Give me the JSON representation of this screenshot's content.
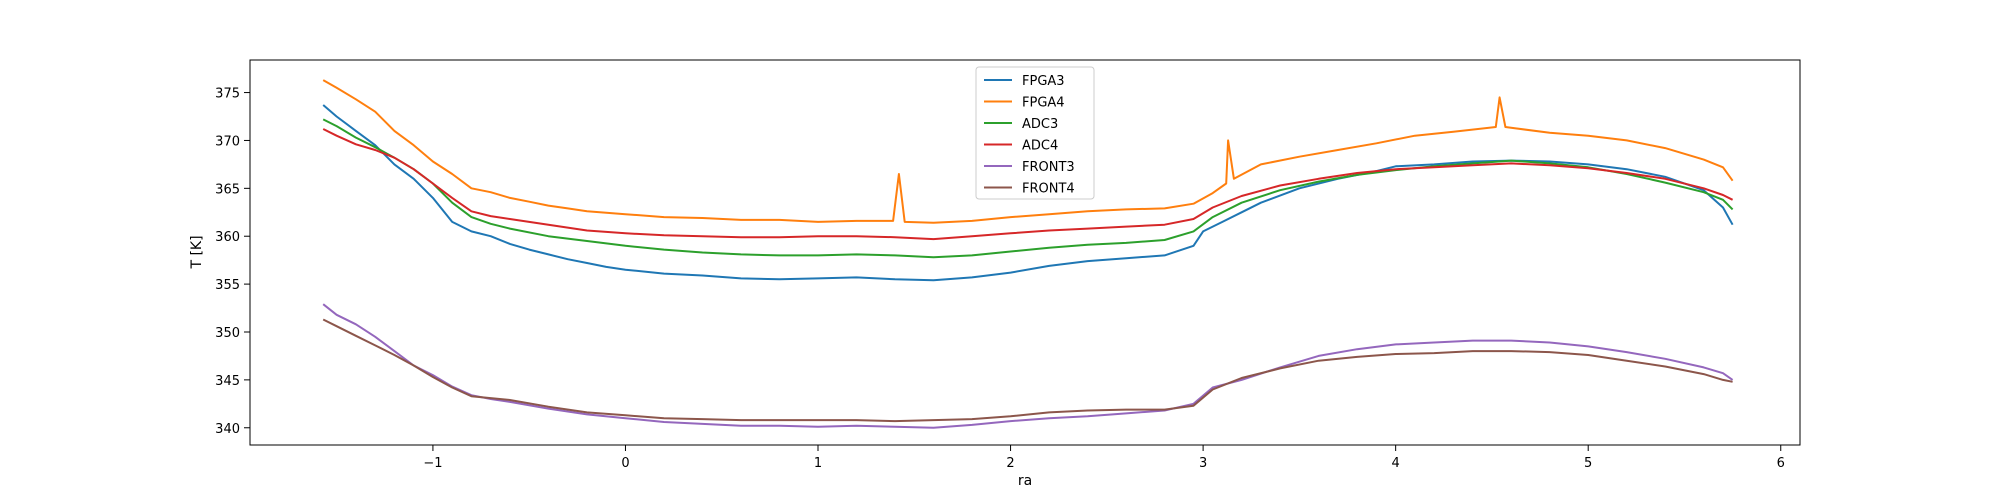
{
  "chart_data": {
    "type": "line",
    "xlabel": "ra",
    "ylabel": "T [K]",
    "xlim": [
      -1.95,
      6.1
    ],
    "ylim": [
      338.2,
      378.4
    ],
    "xticks": [
      -1,
      0,
      1,
      2,
      3,
      4,
      5,
      6
    ],
    "yticks": [
      340,
      345,
      350,
      355,
      360,
      365,
      370,
      375
    ],
    "grid": false,
    "legend_position": "top-center",
    "series": [
      {
        "name": "FPGA3",
        "color": "#1f77b4",
        "x": [
          -1.57,
          -1.5,
          -1.4,
          -1.3,
          -1.2,
          -1.1,
          -1.0,
          -0.9,
          -0.8,
          -0.7,
          -0.6,
          -0.5,
          -0.4,
          -0.3,
          -0.2,
          -0.1,
          0.0,
          0.2,
          0.4,
          0.6,
          0.8,
          1.0,
          1.2,
          1.4,
          1.6,
          1.8,
          2.0,
          2.2,
          2.4,
          2.6,
          2.8,
          2.95,
          3.0,
          3.1,
          3.2,
          3.3,
          3.5,
          3.7,
          3.9,
          4.0,
          4.2,
          4.4,
          4.6,
          4.8,
          5.0,
          5.2,
          5.4,
          5.6,
          5.7,
          5.75
        ],
        "y": [
          373.7,
          372.5,
          371.0,
          369.5,
          367.5,
          366.0,
          364.0,
          361.5,
          360.5,
          360.0,
          359.2,
          358.6,
          358.1,
          357.6,
          357.2,
          356.8,
          356.5,
          356.1,
          355.9,
          355.6,
          355.5,
          355.6,
          355.7,
          355.5,
          355.4,
          355.7,
          356.2,
          356.9,
          357.4,
          357.7,
          358.0,
          359.0,
          360.5,
          361.5,
          362.5,
          363.5,
          365.0,
          366.0,
          366.8,
          367.3,
          367.5,
          367.8,
          367.9,
          367.8,
          367.5,
          367.0,
          366.2,
          364.8,
          363.0,
          361.2
        ]
      },
      {
        "name": "FPGA4",
        "color": "#ff7f0e",
        "x": [
          -1.57,
          -1.5,
          -1.4,
          -1.3,
          -1.2,
          -1.1,
          -1.0,
          -0.9,
          -0.8,
          -0.7,
          -0.6,
          -0.5,
          -0.4,
          -0.3,
          -0.2,
          0.0,
          0.2,
          0.4,
          0.6,
          0.8,
          1.0,
          1.2,
          1.39,
          1.42,
          1.45,
          1.6,
          1.8,
          2.0,
          2.2,
          2.4,
          2.6,
          2.8,
          2.95,
          3.05,
          3.12,
          3.13,
          3.16,
          3.3,
          3.5,
          3.7,
          3.9,
          4.1,
          4.3,
          4.52,
          4.54,
          4.57,
          4.8,
          5.0,
          5.2,
          5.4,
          5.6,
          5.7,
          5.75
        ],
        "y": [
          376.3,
          375.5,
          374.3,
          373.0,
          371.0,
          369.5,
          367.8,
          366.5,
          365.0,
          364.6,
          364.0,
          363.6,
          363.2,
          362.9,
          362.6,
          362.3,
          362.0,
          361.9,
          361.7,
          361.7,
          361.5,
          361.6,
          361.6,
          366.5,
          361.5,
          361.4,
          361.6,
          362.0,
          362.3,
          362.6,
          362.8,
          362.9,
          363.4,
          364.5,
          365.5,
          370.0,
          366.0,
          367.5,
          368.3,
          369.0,
          369.7,
          370.5,
          370.9,
          371.4,
          374.5,
          371.4,
          370.8,
          370.5,
          370.0,
          369.2,
          368.0,
          367.2,
          365.8
        ]
      },
      {
        "name": "ADC3",
        "color": "#2ca02c",
        "x": [
          -1.57,
          -1.5,
          -1.4,
          -1.3,
          -1.2,
          -1.1,
          -1.0,
          -0.9,
          -0.8,
          -0.7,
          -0.6,
          -0.4,
          -0.2,
          0.0,
          0.2,
          0.4,
          0.6,
          0.8,
          1.0,
          1.2,
          1.4,
          1.6,
          1.8,
          2.0,
          2.2,
          2.4,
          2.6,
          2.8,
          2.95,
          3.05,
          3.2,
          3.4,
          3.6,
          3.8,
          4.0,
          4.2,
          4.4,
          4.6,
          4.8,
          5.0,
          5.2,
          5.4,
          5.6,
          5.7,
          5.75
        ],
        "y": [
          372.2,
          371.5,
          370.3,
          369.3,
          368.2,
          367.0,
          365.5,
          363.5,
          362.0,
          361.3,
          360.8,
          360.0,
          359.5,
          359.0,
          358.6,
          358.3,
          358.1,
          358.0,
          358.0,
          358.1,
          358.0,
          357.8,
          358.0,
          358.4,
          358.8,
          359.1,
          359.3,
          359.6,
          360.5,
          362.0,
          363.5,
          364.8,
          365.7,
          366.4,
          366.9,
          367.3,
          367.6,
          367.9,
          367.6,
          367.2,
          366.5,
          365.6,
          364.6,
          363.8,
          362.8
        ]
      },
      {
        "name": "ADC4",
        "color": "#d62728",
        "x": [
          -1.57,
          -1.5,
          -1.4,
          -1.3,
          -1.2,
          -1.1,
          -1.0,
          -0.9,
          -0.8,
          -0.7,
          -0.6,
          -0.4,
          -0.2,
          0.0,
          0.2,
          0.4,
          0.6,
          0.8,
          1.0,
          1.2,
          1.4,
          1.6,
          1.8,
          2.0,
          2.2,
          2.4,
          2.6,
          2.8,
          2.95,
          3.05,
          3.2,
          3.4,
          3.6,
          3.8,
          4.0,
          4.2,
          4.4,
          4.6,
          4.8,
          5.0,
          5.2,
          5.4,
          5.6,
          5.7,
          5.75
        ],
        "y": [
          371.2,
          370.5,
          369.6,
          369.0,
          368.2,
          367.0,
          365.5,
          364.0,
          362.6,
          362.1,
          361.8,
          361.2,
          360.6,
          360.3,
          360.1,
          360.0,
          359.9,
          359.9,
          360.0,
          360.0,
          359.9,
          359.7,
          360.0,
          360.3,
          360.6,
          360.8,
          361.0,
          361.2,
          361.8,
          363.0,
          364.2,
          365.3,
          366.0,
          366.6,
          367.0,
          367.2,
          367.4,
          367.6,
          367.4,
          367.1,
          366.6,
          366.0,
          365.0,
          364.3,
          363.8
        ]
      },
      {
        "name": "FRONT3",
        "color": "#9467bd",
        "x": [
          -1.57,
          -1.5,
          -1.4,
          -1.3,
          -1.2,
          -1.1,
          -1.0,
          -0.9,
          -0.8,
          -0.7,
          -0.6,
          -0.4,
          -0.2,
          0.0,
          0.2,
          0.4,
          0.6,
          0.8,
          1.0,
          1.2,
          1.4,
          1.6,
          1.8,
          2.0,
          2.2,
          2.4,
          2.6,
          2.8,
          2.95,
          3.05,
          3.2,
          3.4,
          3.6,
          3.8,
          4.0,
          4.2,
          4.4,
          4.6,
          4.8,
          5.0,
          5.2,
          5.4,
          5.6,
          5.7,
          5.75
        ],
        "y": [
          352.9,
          351.8,
          350.8,
          349.5,
          348.0,
          346.5,
          345.5,
          344.3,
          343.4,
          343.0,
          342.7,
          342.0,
          341.4,
          341.0,
          340.6,
          340.4,
          340.2,
          340.2,
          340.1,
          340.2,
          340.1,
          340.0,
          340.3,
          340.7,
          341.0,
          341.2,
          341.5,
          341.8,
          342.5,
          344.2,
          345.0,
          346.3,
          347.5,
          348.2,
          348.7,
          348.9,
          349.1,
          349.1,
          348.9,
          348.5,
          347.9,
          347.2,
          346.3,
          345.7,
          345.0
        ]
      },
      {
        "name": "FRONT4",
        "color": "#8c564b",
        "x": [
          -1.57,
          -1.5,
          -1.4,
          -1.3,
          -1.2,
          -1.1,
          -1.0,
          -0.9,
          -0.8,
          -0.7,
          -0.6,
          -0.4,
          -0.2,
          0.0,
          0.2,
          0.4,
          0.6,
          0.8,
          1.0,
          1.2,
          1.4,
          1.6,
          1.8,
          2.0,
          2.2,
          2.4,
          2.6,
          2.8,
          2.95,
          3.05,
          3.2,
          3.4,
          3.6,
          3.8,
          4.0,
          4.2,
          4.4,
          4.6,
          4.8,
          5.0,
          5.2,
          5.4,
          5.6,
          5.7,
          5.75
        ],
        "y": [
          351.3,
          350.6,
          349.6,
          348.6,
          347.6,
          346.5,
          345.3,
          344.2,
          343.3,
          343.1,
          342.9,
          342.2,
          341.6,
          341.3,
          341.0,
          340.9,
          340.8,
          340.8,
          340.8,
          340.8,
          340.7,
          340.8,
          340.9,
          341.2,
          341.6,
          341.8,
          341.9,
          341.9,
          342.3,
          344.0,
          345.2,
          346.2,
          347.0,
          347.4,
          347.7,
          347.8,
          348.0,
          348.0,
          347.9,
          347.6,
          347.0,
          346.4,
          345.6,
          345.0,
          344.8
        ]
      }
    ]
  }
}
